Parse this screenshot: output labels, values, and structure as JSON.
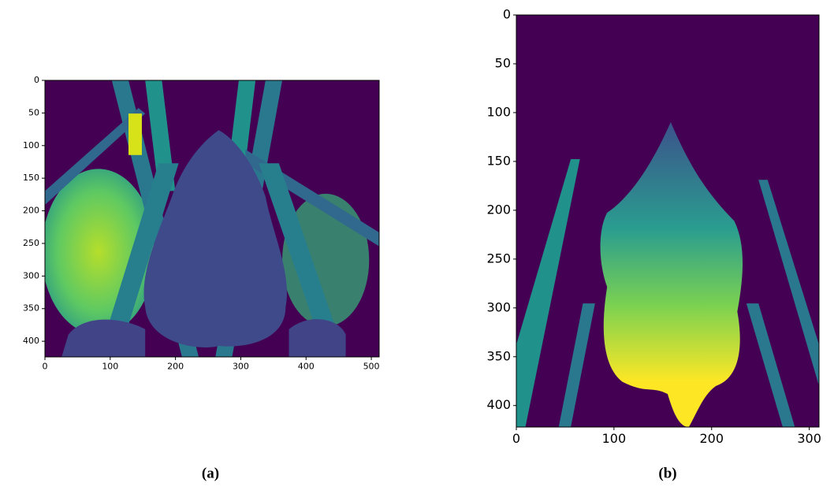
{
  "chart_data": [
    {
      "type": "image",
      "caption": "(a)",
      "xlim": [
        0,
        512
      ],
      "ylim": [
        424,
        0
      ],
      "xticks": [
        0,
        100,
        200,
        300,
        400,
        500
      ],
      "yticks": [
        0,
        50,
        100,
        150,
        200,
        250,
        300,
        350,
        400
      ]
    },
    {
      "type": "image",
      "caption": "(b)",
      "xlim": [
        0,
        310
      ],
      "ylim": [
        422,
        0
      ],
      "xticks": [
        0,
        100,
        200,
        300
      ],
      "yticks": [
        0,
        50,
        100,
        150,
        200,
        250,
        300,
        350,
        400
      ]
    }
  ]
}
